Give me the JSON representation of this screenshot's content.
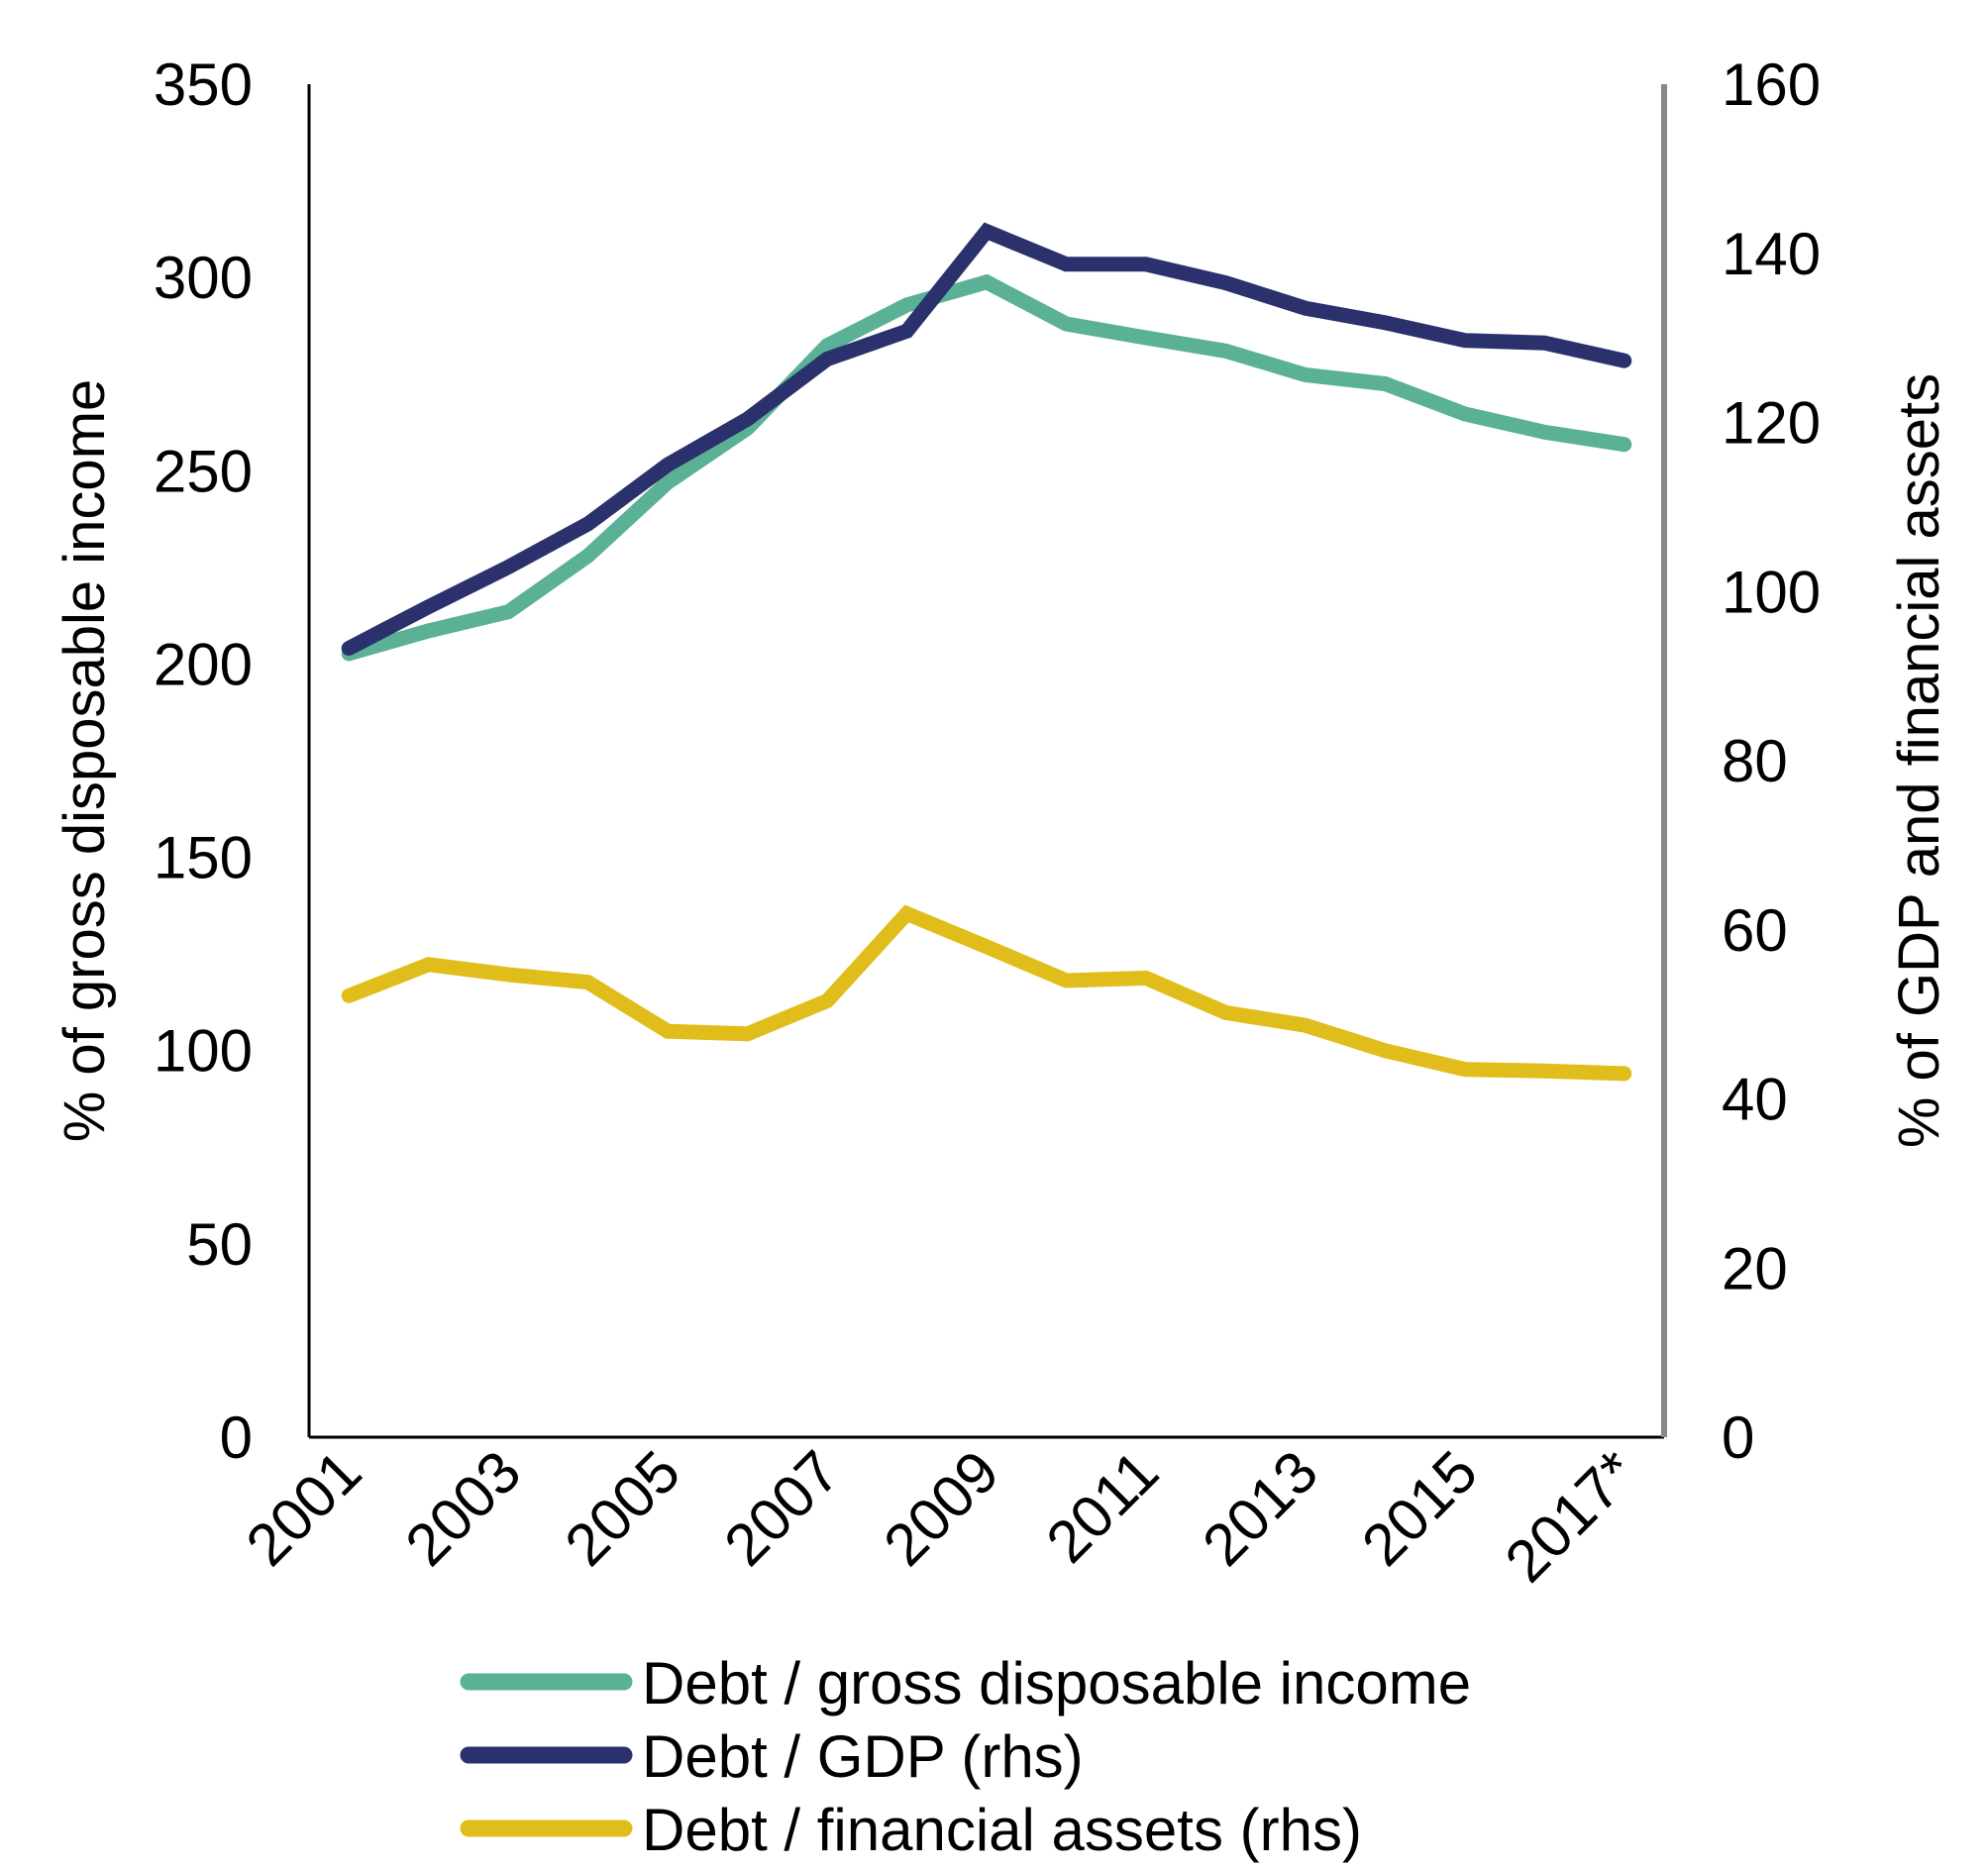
{
  "chart_data": {
    "type": "line",
    "title": "",
    "categories": [
      "2001",
      "2002",
      "2003",
      "2004",
      "2005",
      "2006",
      "2007",
      "2008",
      "2009",
      "2010",
      "2011",
      "2012",
      "2013",
      "2014",
      "2015",
      "2016",
      "2017*"
    ],
    "x_tick_labels": [
      "2001",
      "2003",
      "2005",
      "2007",
      "2009",
      "2011",
      "2013",
      "2015",
      "2017*"
    ],
    "xlabel": "",
    "ylabel": "% of gross disposable income",
    "ylabel_right": "% of GDP and financial assets",
    "ylim": [
      0,
      350
    ],
    "ylim_right": [
      0,
      160
    ],
    "y_ticks": [
      0,
      50,
      100,
      150,
      200,
      250,
      300,
      350
    ],
    "y_ticks_right": [
      0,
      20,
      40,
      60,
      80,
      100,
      120,
      140,
      160
    ],
    "grid": false,
    "legend_position": "bottom",
    "series": [
      {
        "name": "Debt / gross disposable income",
        "axis": "left",
        "color": "#5BB196",
        "values": [
          202.7,
          208.6,
          213.5,
          228,
          247,
          261,
          282.4,
          292.9,
          298.8,
          288,
          284.4,
          281,
          274.8,
          272.5,
          264.7,
          260,
          256.8
        ]
      },
      {
        "name": "Debt / GDP (rhs)",
        "axis": "right",
        "color": "#2B316C",
        "values": [
          93.3,
          98.2,
          102.9,
          108,
          115,
          120.4,
          127.5,
          130.8,
          142.6,
          138.7,
          138.7,
          136.5,
          133.5,
          131.8,
          129.7,
          129.4,
          127.3
        ]
      },
      {
        "name": "Debt / financial assets (rhs)",
        "axis": "right",
        "color": "#E0BD1A",
        "values": [
          52.2,
          55.9,
          54.7,
          53.8,
          48,
          47.7,
          51.6,
          61.9,
          58,
          54,
          54.3,
          50.2,
          48.7,
          45.7,
          43.5,
          43.3,
          43
        ]
      }
    ]
  }
}
